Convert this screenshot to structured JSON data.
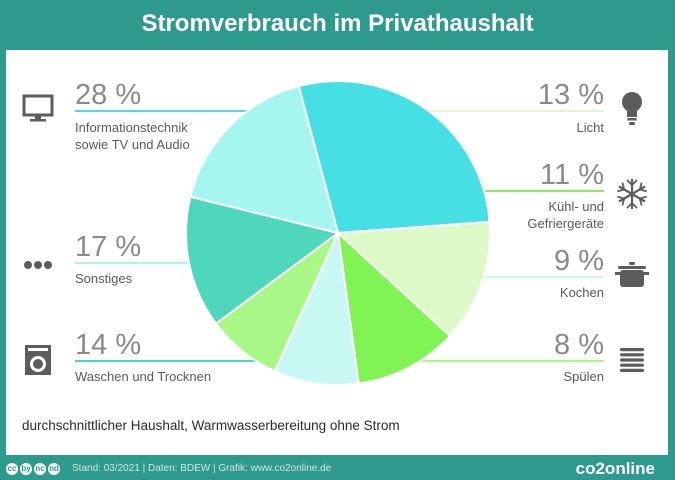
{
  "title": "Stromverbrauch im Privathaushalt",
  "note": "durchschnittlicher Haushalt, Warmwasserbereitung ohne Strom",
  "footer": {
    "cc_icons": [
      "cc",
      "by",
      "nc",
      "nd"
    ],
    "credits": "Stand: 03/2021  |  Daten: BDEW  |  Grafik: www.co2online.de",
    "logo": "co2online"
  },
  "colors": {
    "background": "#2e9a8e",
    "panel": "#ffffff",
    "icon": "#5c5c5c"
  },
  "chart_data": {
    "type": "pie",
    "title": "Stromverbrauch im Privathaushalt",
    "unit": "%",
    "slices": [
      {
        "value": 28,
        "pct_label": "28 %",
        "label_lines": [
          "Informationstechnik",
          "sowie TV und Audio"
        ],
        "color": "#46e0e4",
        "icon": "tv-icon",
        "side": "left"
      },
      {
        "value": 13,
        "pct_label": "13 %",
        "label_lines": [
          "Licht"
        ],
        "color": "#def9c8",
        "icon": "lightbulb-icon",
        "side": "right"
      },
      {
        "value": 11,
        "pct_label": "11 %",
        "label_lines": [
          "Kühl- und",
          "Gefriergeräte"
        ],
        "color": "#80f455",
        "icon": "snowflake-icon",
        "side": "right"
      },
      {
        "value": 9,
        "pct_label": "9 %",
        "label_lines": [
          "Kochen"
        ],
        "color": "#c8f8f4",
        "icon": "pot-icon",
        "side": "right"
      },
      {
        "value": 8,
        "pct_label": "8 %",
        "label_lines": [
          "Spülen"
        ],
        "color": "#a8f787",
        "icon": "dish-stack-icon",
        "side": "right"
      },
      {
        "value": 14,
        "pct_label": "14 %",
        "label_lines": [
          "Waschen und Trocknen"
        ],
        "color": "#4fd7bb",
        "icon": "washing-machine-icon",
        "side": "left"
      },
      {
        "value": 17,
        "pct_label": "17 %",
        "label_lines": [
          "Sonstiges"
        ],
        "color": "#a6f6f0",
        "icon": "dots-icon",
        "side": "left"
      }
    ]
  }
}
